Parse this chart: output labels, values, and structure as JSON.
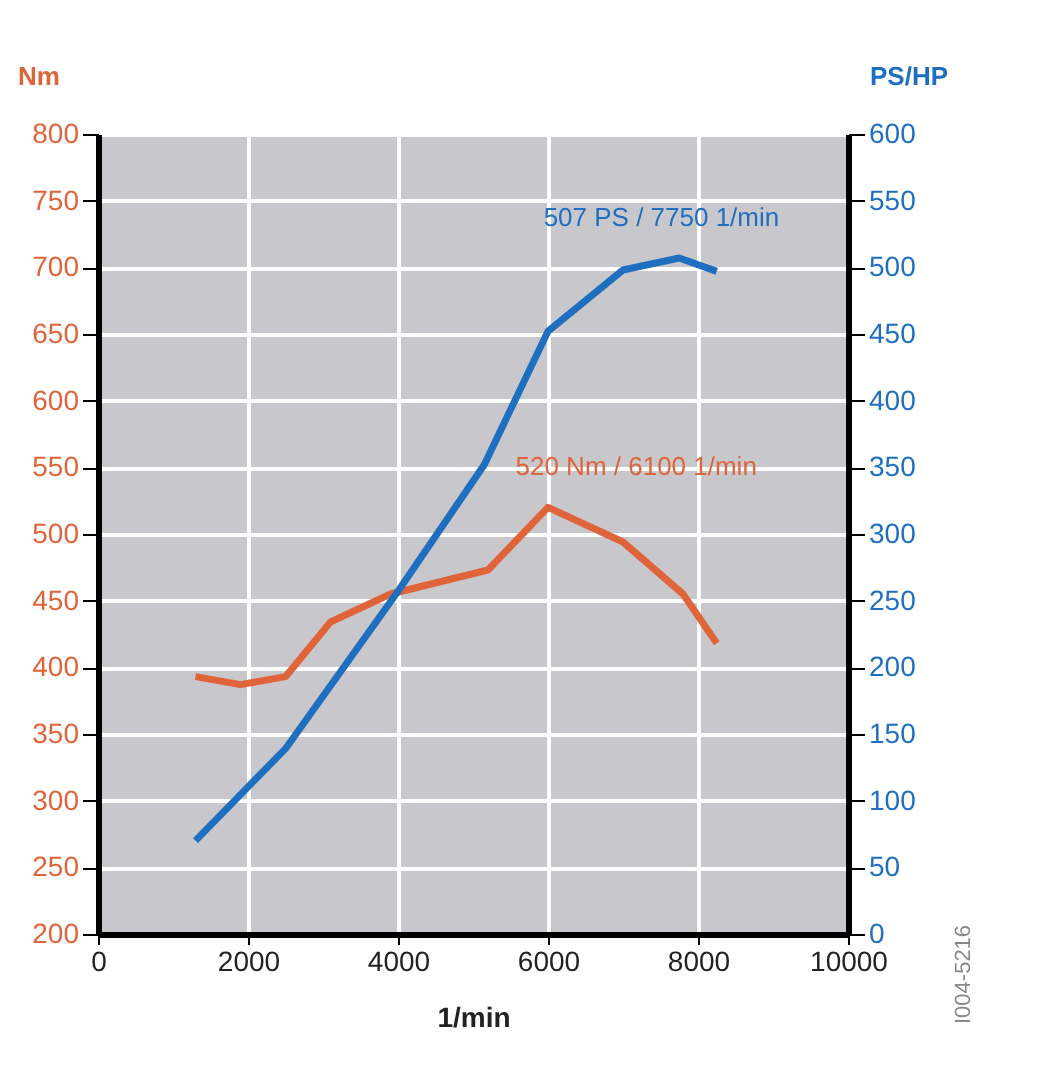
{
  "chart_data": {
    "type": "line",
    "xlabel": "1/min",
    "ylabel": "Nm",
    "y2label": "PS/HP",
    "xlim": [
      0,
      10000
    ],
    "xticks": [
      0,
      2000,
      4000,
      6000,
      8000,
      10000
    ],
    "ylim": [
      200,
      800
    ],
    "yticks": [
      200,
      250,
      300,
      350,
      400,
      450,
      500,
      550,
      600,
      650,
      700,
      750,
      800
    ],
    "y2lim": [
      0,
      600
    ],
    "y2ticks": [
      0,
      50,
      100,
      150,
      200,
      250,
      300,
      350,
      400,
      450,
      500,
      550,
      600
    ],
    "grid": true,
    "marker": "none",
    "line_style": "solid",
    "series": [
      {
        "color": "#e0643a",
        "x": [
          1300,
          1900,
          2500,
          3100,
          3900,
          5200,
          6000,
          7000,
          7800,
          8250
        ],
        "values": [
          393,
          387,
          393,
          434,
          455,
          473,
          520,
          494,
          455,
          418
        ]
      },
      {
        "color": "#1f6fc0",
        "axis": "y2",
        "x": [
          1300,
          2500,
          4000,
          5150,
          6000,
          7000,
          7750,
          8250
        ],
        "values": [
          70,
          139,
          257,
          352,
          452,
          498,
          507,
          497
        ]
      }
    ],
    "annotations": [
      {
        "text": "507 PS / 7750 1/min",
        "x": 7750,
        "y": 707
      },
      {
        "text": "520 Nm / 6100  1/min",
        "x": 6100,
        "y": 520
      },
      "I004-5216"
    ]
  }
}
